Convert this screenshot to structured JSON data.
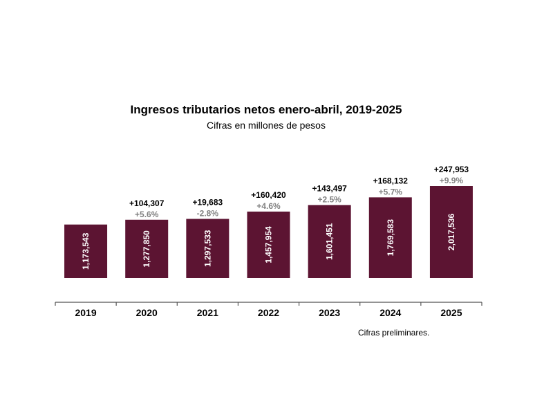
{
  "chart_data": {
    "type": "bar",
    "title": "Ingresos tributarios netos enero-abril, 2019-2025",
    "subtitle": "Cifras en millones de pesos",
    "categories": [
      "2019",
      "2020",
      "2021",
      "2022",
      "2023",
      "2024",
      "2025"
    ],
    "values": [
      1173543,
      1277850,
      1297533,
      1457954,
      1601451,
      1769583,
      2017536
    ],
    "value_labels": [
      "1,173,543",
      "1,277,850",
      "1,297,533",
      "1,457,954",
      "1,601,451",
      "1,769,583",
      "2,017,536"
    ],
    "change_abs": [
      "",
      "+104,307",
      "+19,683",
      "+160,420",
      "+143,497",
      "+168,132",
      "+247,953"
    ],
    "change_pct": [
      "",
      "+5.6%",
      "-2.8%",
      "+4.6%",
      "+2.5%",
      "+5.7%",
      "+9.9%"
    ],
    "footnote": "Cifras preliminares.",
    "colors": {
      "bar": "#5c1432",
      "bar_label": "#ffffff",
      "change_abs": "#000000",
      "change_pct": "#808080",
      "axis": "#555555",
      "text": "#000000"
    }
  }
}
